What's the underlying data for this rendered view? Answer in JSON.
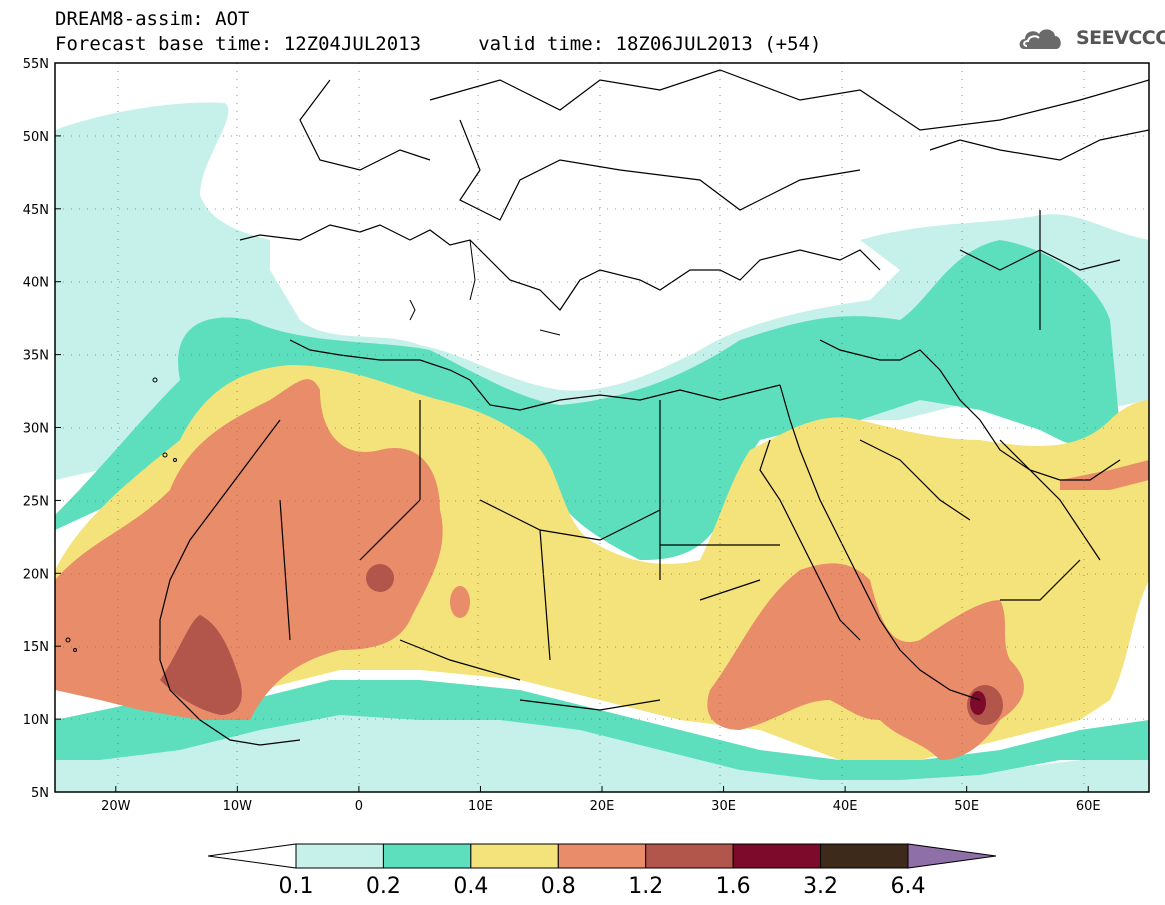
{
  "header": {
    "line1": "DREAM8-assim: AOT",
    "line2": "Forecast base time: 12Z04JUL2013     valid time: 18Z06JUL2013 (+54)"
  },
  "logo": {
    "text": "SEEVCCC",
    "icon": "cloud-icon"
  },
  "map": {
    "lon_range": [
      -25,
      65
    ],
    "lat_range": [
      5,
      55
    ],
    "lon_ticks": [
      "20W",
      "10W",
      "0",
      "10E",
      "20E",
      "30E",
      "40E",
      "50E",
      "60E"
    ],
    "lat_ticks": [
      "55N",
      "50N",
      "45N",
      "40N",
      "35N",
      "30N",
      "25N",
      "20N",
      "15N",
      "10N",
      "5N"
    ],
    "grid": "dotted"
  },
  "colorbar": {
    "labels": [
      "0.1",
      "0.2",
      "0.4",
      "0.8",
      "1.2",
      "1.6",
      "3.2",
      "6.4"
    ],
    "colors": [
      "#ffffff",
      "#c6f1ea",
      "#5ddfbd",
      "#f4e27a",
      "#e88c6a",
      "#b2564b",
      "#7d0a2a",
      "#3d2a1a",
      "#8e6fa8"
    ]
  }
}
